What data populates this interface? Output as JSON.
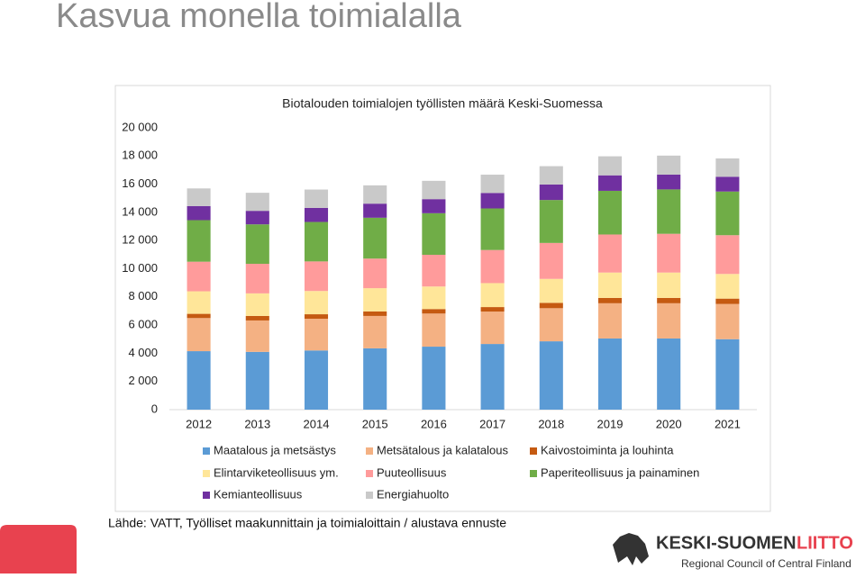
{
  "title": "Kasvua monella toimialalla",
  "chart_data": {
    "type": "stacked_bar",
    "title": "Biotalouden toimialojen työllisten määrä Keski-Suomessa",
    "categories": [
      "2012",
      "2013",
      "2014",
      "2015",
      "2016",
      "2017",
      "2018",
      "2019",
      "2020",
      "2021"
    ],
    "series": [
      {
        "name": "Maatalous ja metsästys",
        "color": "#5b9bd5",
        "values": [
          4150,
          4100,
          4200,
          4350,
          4470,
          4660,
          4850,
          5050,
          5050,
          5000
        ]
      },
      {
        "name": "Metsätalous ja kalatalous",
        "color": "#f4b183",
        "values": [
          2350,
          2230,
          2250,
          2300,
          2350,
          2300,
          2350,
          2500,
          2500,
          2500
        ]
      },
      {
        "name": "Kaivostoiminta ja louhinta",
        "color": "#c55a11",
        "values": [
          300,
          320,
          320,
          320,
          320,
          320,
          380,
          380,
          380,
          380
        ]
      },
      {
        "name": "Elintarviketeollisuus ym.",
        "color": "#ffe699",
        "values": [
          1600,
          1600,
          1650,
          1650,
          1600,
          1700,
          1700,
          1800,
          1800,
          1750
        ]
      },
      {
        "name": "Puuteollisuus",
        "color": "#ff9b9b",
        "values": [
          2100,
          2100,
          2100,
          2100,
          2250,
          2350,
          2550,
          2700,
          2750,
          2750
        ]
      },
      {
        "name": "Paperiteollisuus ja painaminen",
        "color": "#70ad47",
        "values": [
          2950,
          2800,
          2800,
          2900,
          2950,
          2950,
          3050,
          3100,
          3150,
          3100
        ]
      },
      {
        "name": "Kemianteollisuus",
        "color": "#7030a0",
        "values": [
          1000,
          960,
          1000,
          1000,
          1000,
          1100,
          1100,
          1100,
          1050,
          1050
        ]
      },
      {
        "name": "Energiahuolto",
        "color": "#c9c9c9",
        "values": [
          1250,
          1280,
          1300,
          1300,
          1300,
          1300,
          1300,
          1350,
          1350,
          1300
        ]
      }
    ],
    "ylim": [
      0,
      20000
    ],
    "yticks": [
      0,
      {
        "value": 2000,
        "label": "2 000"
      },
      {
        "value": 4000,
        "label": "4 000"
      },
      {
        "value": 6000,
        "label": "6 000"
      },
      {
        "value": 8000,
        "label": "8 000"
      },
      {
        "value": 10000,
        "label": "10 000"
      },
      {
        "value": 12000,
        "label": "12 000"
      },
      {
        "value": 14000,
        "label": "14 000"
      },
      {
        "value": 16000,
        "label": "16 000"
      },
      {
        "value": 18000,
        "label": "18 000"
      },
      {
        "value": 20000,
        "label": "20 000"
      }
    ],
    "grid": false,
    "legend": "bottom"
  },
  "source": "Lähde: VATT, Työlliset maakunnittain ja toimialoittain / alustava ennuste",
  "logo": {
    "name": "KESKI-SUOMEN",
    "name_accent": "LIITTO",
    "subtitle": "Regional Council of Central Finland"
  }
}
